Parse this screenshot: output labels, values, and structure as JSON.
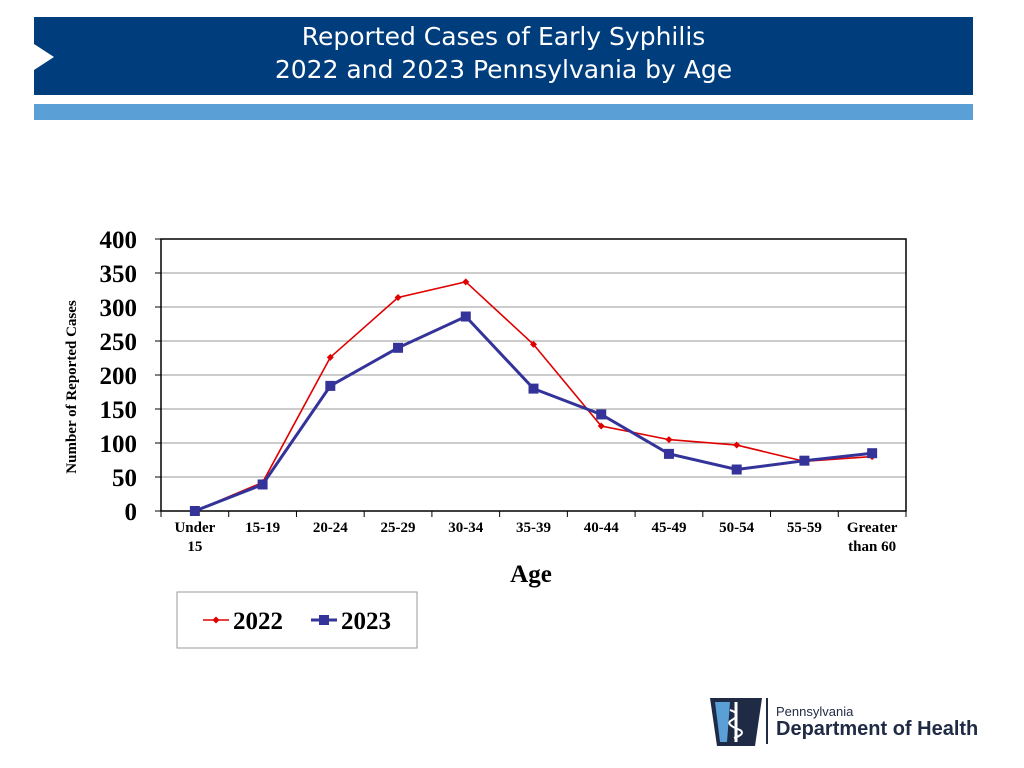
{
  "header": {
    "title_line1": "Reported Cases of Early Syphilis",
    "title_line2": "2022 and 2023 Pennsylvania by Age",
    "colors": {
      "banner": "#003d7c",
      "stripe": "#5aa0d6"
    }
  },
  "chart_data": {
    "type": "line",
    "title": "",
    "xlabel": "Age",
    "ylabel": "Number of Reported Cases",
    "ylim": [
      0,
      400
    ],
    "yticks": [
      "0",
      "50",
      "100",
      "150",
      "200",
      "250",
      "300",
      "350",
      "400"
    ],
    "grid": true,
    "legend_position": "bottom-left",
    "categories": [
      [
        "Under",
        "15"
      ],
      [
        "15-19"
      ],
      [
        "20-24"
      ],
      [
        "25-29"
      ],
      [
        "30-34"
      ],
      [
        "35-39"
      ],
      [
        "40-44"
      ],
      [
        "45-49"
      ],
      [
        "50-54"
      ],
      [
        "55-59"
      ],
      [
        "Greater",
        "than 60"
      ]
    ],
    "series": [
      {
        "name": "2022",
        "color": "#e00000",
        "marker": "diamond",
        "values": [
          0,
          42,
          226,
          314,
          337,
          245,
          125,
          105,
          97,
          73,
          80
        ]
      },
      {
        "name": "2023",
        "color": "#33339a",
        "marker": "square",
        "values": [
          0,
          39,
          184,
          240,
          286,
          180,
          142,
          84,
          61,
          74,
          85
        ]
      }
    ]
  },
  "logo": {
    "line1": "Pennsylvania",
    "line2": "Department of Health",
    "color": "#1f2a44"
  }
}
